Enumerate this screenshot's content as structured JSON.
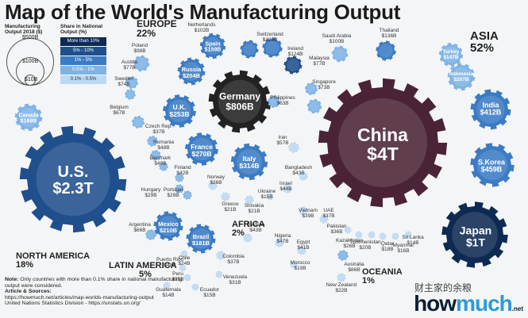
{
  "title": "Map of the World's Manufacturing Output",
  "legend": {
    "size_title": "Manufacturing Output 2018 ($)",
    "size_values": [
      "$500B",
      "$100B",
      "$10B"
    ],
    "share_title": "Share in National Output (%)",
    "share_bins": [
      {
        "label": "More than 10%",
        "color": "#0d2a52"
      },
      {
        "label": "5% - 10%",
        "color": "#1f4f8c"
      },
      {
        "label": "1% - 5%",
        "color": "#3b7bc4"
      },
      {
        "label": "0.5% - 1%",
        "color": "#7fb3e6"
      },
      {
        "label": "0.1% - 0.5%",
        "color": "#bcd9f3"
      }
    ]
  },
  "regions": [
    {
      "name": "EUROPE",
      "share": "22%"
    },
    {
      "name": "ASIA",
      "share": "52%"
    },
    {
      "name": "NORTH AMERICA",
      "share": "18%"
    },
    {
      "name": "LATIN AMERICA",
      "share": "5%"
    },
    {
      "name": "AFRICA",
      "share": "2%"
    },
    {
      "name": "OCEANIA",
      "share": "1%"
    }
  ],
  "countries_big": [
    {
      "name": "China",
      "value": "$4T"
    },
    {
      "name": "U.S.",
      "value": "$2.3T"
    },
    {
      "name": "Japan",
      "value": "$1T"
    },
    {
      "name": "Germany",
      "value": "$806B"
    },
    {
      "name": "S.Korea",
      "value": "$459B"
    },
    {
      "name": "India",
      "value": "$412B"
    },
    {
      "name": "Italy",
      "value": "$314B"
    },
    {
      "name": "France",
      "value": "$270B"
    },
    {
      "name": "U.K.",
      "value": "$253B"
    },
    {
      "name": "Mexico",
      "value": "$210B"
    },
    {
      "name": "Indonesia",
      "value": "$207B"
    },
    {
      "name": "Russia",
      "value": "$204B"
    },
    {
      "name": "Brazil",
      "value": "$181B"
    },
    {
      "name": "Canada",
      "value": "$169B"
    },
    {
      "name": "Spain",
      "value": "$159B"
    },
    {
      "name": "Turkey",
      "value": "$147B"
    }
  ],
  "countries_small": [
    {
      "name": "Netherlands",
      "value": "$102B"
    },
    {
      "name": "Switzerland",
      "value": "$129B"
    },
    {
      "name": "Ireland",
      "value": "$124B"
    },
    {
      "name": "Saudi Arabia",
      "value": "$100B"
    },
    {
      "name": "Thailand",
      "value": "$136B"
    },
    {
      "name": "Poland",
      "value": "$98B"
    },
    {
      "name": "Austria",
      "value": "$77B"
    },
    {
      "name": "Sweden",
      "value": "$74B"
    },
    {
      "name": "Belgium",
      "value": "$67B"
    },
    {
      "name": "Malaysia",
      "value": "$77B"
    },
    {
      "name": "Singapore",
      "value": "$73B"
    },
    {
      "name": "Philippines",
      "value": "$63B"
    },
    {
      "name": "Czech Rep.",
      "value": "$37B"
    },
    {
      "name": "Romania",
      "value": "$48B"
    },
    {
      "name": "Denmark",
      "value": "$40B"
    },
    {
      "name": "Finland",
      "value": "$42B"
    },
    {
      "name": "Hungary",
      "value": "$29B"
    },
    {
      "name": "Portugal",
      "value": "$29B"
    },
    {
      "name": "Norway",
      "value": "$26B"
    },
    {
      "name": "Greece",
      "value": "$21B"
    },
    {
      "name": "Slovakia",
      "value": "$21B"
    },
    {
      "name": "Ukraine",
      "value": "$15B"
    },
    {
      "name": "Israel",
      "value": "$44B"
    },
    {
      "name": "Iran",
      "value": "$57B"
    },
    {
      "name": "Bangladesh",
      "value": "$43B"
    },
    {
      "name": "Vietnam",
      "value": "$39B"
    },
    {
      "name": "UAE",
      "value": "$37B"
    },
    {
      "name": "Pakistan",
      "value": "$36B"
    },
    {
      "name": "Kazakhstan",
      "value": "$26B"
    },
    {
      "name": "Turkmenistan",
      "value": "$20B"
    },
    {
      "name": "Qatar",
      "value": "$18B"
    },
    {
      "name": "Myanmar",
      "value": "$16B"
    },
    {
      "name": "Sri Lanka",
      "value": "$14B"
    },
    {
      "name": "S.Africa",
      "value": "$43B"
    },
    {
      "name": "Nigeria",
      "value": "$47B"
    },
    {
      "name": "Egypt",
      "value": "$41B"
    },
    {
      "name": "Morocco",
      "value": "$19B"
    },
    {
      "name": "Argentina",
      "value": "$66B"
    },
    {
      "name": "Chile",
      "value": "$24B"
    },
    {
      "name": "Colombia",
      "value": "$37B"
    },
    {
      "name": "Puerto Rico",
      "value": "$48B"
    },
    {
      "name": "Peru",
      "value": "$25B"
    },
    {
      "name": "Venezuela",
      "value": "$31B"
    },
    {
      "name": "Guatemala",
      "value": "$14B"
    },
    {
      "name": "Ecuador",
      "value": "$15B"
    },
    {
      "name": "Australia",
      "value": "$86B"
    },
    {
      "name": "New Zealand",
      "value": "$22B"
    }
  ],
  "note_label": "Note:",
  "note_text": "Only countries with more than 0.1% share in national manufacturing output were considered.",
  "sources_label": "Article & Sources:",
  "source_url": "https://howmuch.net/articles/map-worlds-manufacturing-output",
  "source_un": "United Nations Statistics Division - https://unstats.un.org/",
  "watermark": "财主家的余粮",
  "brand": {
    "part1": "how",
    "part2": "much",
    "suffix": ".net"
  }
}
